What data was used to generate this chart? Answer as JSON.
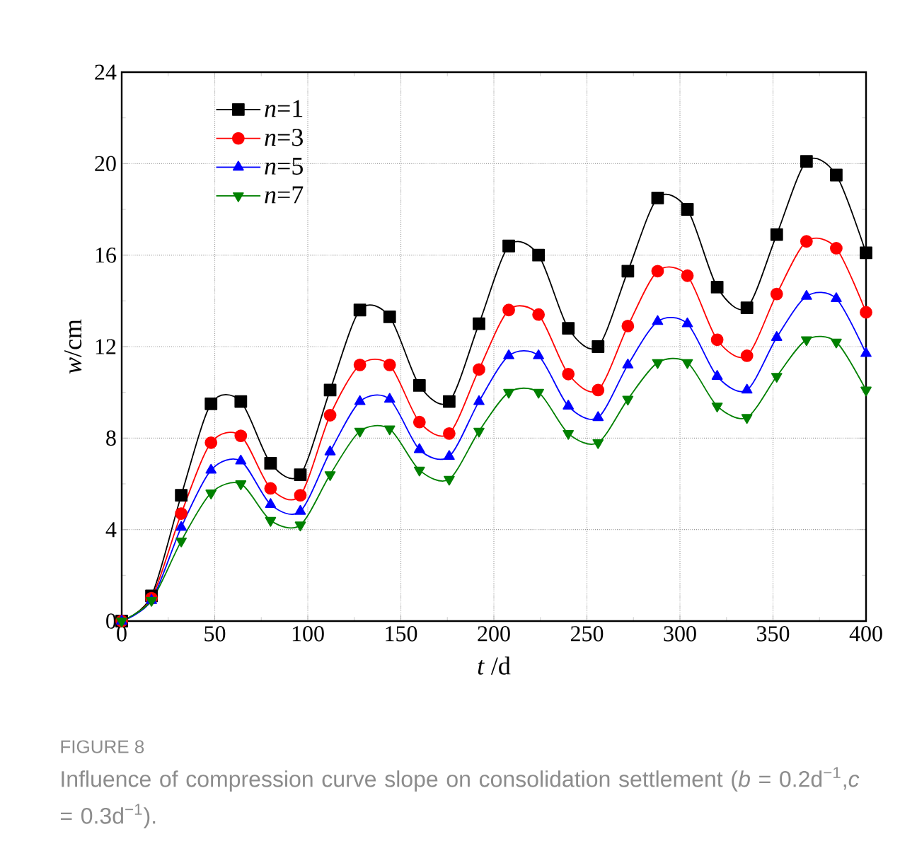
{
  "chart_data": {
    "type": "line",
    "xlabel": "*t* /d",
    "ylabel": "*w*/cm",
    "x": [
      0,
      16,
      32,
      48,
      64,
      80,
      96,
      112,
      128,
      144,
      160,
      176,
      192,
      208,
      224,
      240,
      256,
      272,
      288,
      304,
      320,
      336,
      352,
      368,
      384,
      400
    ],
    "series": [
      {
        "name": "*n*=1",
        "color": "#000000",
        "marker": "square",
        "values": [
          0,
          1.1,
          5.5,
          9.5,
          9.6,
          6.9,
          6.4,
          10.1,
          13.6,
          13.3,
          10.3,
          9.6,
          13.0,
          16.4,
          16.0,
          12.8,
          12.0,
          15.3,
          18.5,
          18.0,
          14.6,
          13.7,
          16.9,
          20.1,
          19.5,
          16.1
        ]
      },
      {
        "name": "*n*=3",
        "color": "#ff0000",
        "marker": "circle",
        "values": [
          0,
          1.0,
          4.7,
          7.8,
          8.1,
          5.8,
          5.5,
          9.0,
          11.2,
          11.2,
          8.7,
          8.2,
          11.0,
          13.6,
          13.4,
          10.8,
          10.1,
          12.9,
          15.3,
          15.1,
          12.3,
          11.6,
          14.3,
          16.6,
          16.3,
          13.5
        ]
      },
      {
        "name": "*n*=5",
        "color": "#0000ff",
        "marker": "triangle",
        "values": [
          0,
          0.9,
          4.1,
          6.6,
          7.0,
          5.1,
          4.8,
          7.4,
          9.6,
          9.7,
          7.5,
          7.2,
          9.6,
          11.6,
          11.6,
          9.4,
          8.9,
          11.2,
          13.1,
          13.0,
          10.7,
          10.1,
          12.4,
          14.2,
          14.1,
          11.7
        ]
      },
      {
        "name": "*n*=7",
        "color": "#008000",
        "marker": "triangle-down",
        "values": [
          0,
          0.9,
          3.5,
          5.6,
          6.0,
          4.4,
          4.2,
          6.4,
          8.3,
          8.4,
          6.6,
          6.2,
          8.3,
          10.0,
          10.0,
          8.2,
          7.8,
          9.7,
          11.3,
          11.3,
          9.4,
          8.9,
          10.7,
          12.3,
          12.2,
          10.1
        ]
      }
    ],
    "xlim": [
      0,
      400
    ],
    "xticks": [
      0,
      50,
      100,
      150,
      200,
      250,
      300,
      350,
      400
    ],
    "ylim": [
      0,
      24
    ],
    "yticks": [
      0,
      4,
      8,
      12,
      16,
      20,
      24
    ],
    "grid": true,
    "legend": "top left",
    "line_style": "solid",
    "annotations": [
      "FIGURE 8",
      "Influence of compression curve slope on consolidation settlement (*b* = 0.2d$^{−1}$,*c* = 0.3d$^{−1}$)."
    ]
  }
}
